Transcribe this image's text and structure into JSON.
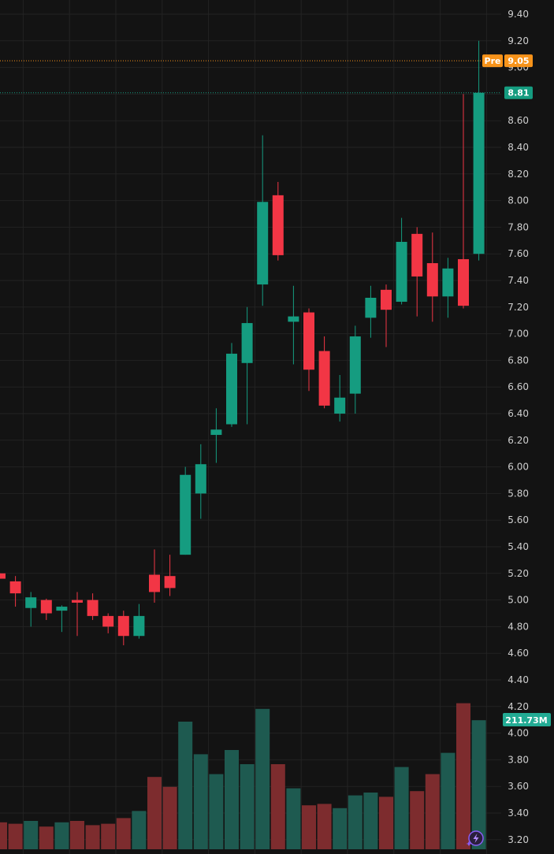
{
  "chart_data": {
    "type": "candlestick",
    "y_ticks": [
      "9.40",
      "9.20",
      "9.00",
      "8.80",
      "8.60",
      "8.40",
      "8.20",
      "8.00",
      "7.80",
      "7.60",
      "7.40",
      "7.20",
      "7.00",
      "6.80",
      "6.60",
      "6.40",
      "6.20",
      "6.00",
      "5.80",
      "5.60",
      "5.40",
      "5.20",
      "5.00",
      "4.80",
      "4.60",
      "4.40",
      "4.20",
      "4.00",
      "3.80",
      "3.60",
      "3.40",
      "3.20"
    ],
    "ylim": [
      3.12,
      9.52
    ],
    "grid": true,
    "candles": [
      {
        "open": 5.2,
        "high": 5.2,
        "low": 5.16,
        "close": 5.16
      },
      {
        "open": 5.14,
        "high": 5.18,
        "low": 4.95,
        "close": 5.05
      },
      {
        "open": 4.94,
        "high": 5.06,
        "low": 4.8,
        "close": 5.02
      },
      {
        "open": 5.0,
        "high": 5.01,
        "low": 4.85,
        "close": 4.9
      },
      {
        "open": 4.92,
        "high": 4.96,
        "low": 4.76,
        "close": 4.95
      },
      {
        "open": 5.0,
        "high": 5.06,
        "low": 4.73,
        "close": 4.98
      },
      {
        "open": 5.0,
        "high": 5.05,
        "low": 4.85,
        "close": 4.88
      },
      {
        "open": 4.88,
        "high": 4.9,
        "low": 4.75,
        "close": 4.8
      },
      {
        "open": 4.88,
        "high": 4.92,
        "low": 4.66,
        "close": 4.73
      },
      {
        "open": 4.73,
        "high": 4.97,
        "low": 4.71,
        "close": 4.88
      },
      {
        "open": 5.19,
        "high": 5.38,
        "low": 4.98,
        "close": 5.06
      },
      {
        "open": 5.18,
        "high": 5.34,
        "low": 5.03,
        "close": 5.09
      },
      {
        "open": 5.34,
        "high": 6.0,
        "low": 5.34,
        "close": 5.94
      },
      {
        "open": 5.8,
        "high": 6.17,
        "low": 5.61,
        "close": 6.02
      },
      {
        "open": 6.24,
        "high": 6.44,
        "low": 6.03,
        "close": 6.28
      },
      {
        "open": 6.32,
        "high": 6.93,
        "low": 6.3,
        "close": 6.85
      },
      {
        "open": 6.78,
        "high": 7.2,
        "low": 6.32,
        "close": 7.08
      },
      {
        "open": 7.37,
        "high": 8.49,
        "low": 7.21,
        "close": 7.99
      },
      {
        "open": 8.04,
        "high": 8.14,
        "low": 7.55,
        "close": 7.59
      },
      {
        "open": 7.09,
        "high": 7.36,
        "low": 6.77,
        "close": 7.13
      },
      {
        "open": 7.16,
        "high": 7.19,
        "low": 6.57,
        "close": 6.73
      },
      {
        "open": 6.87,
        "high": 6.98,
        "low": 6.44,
        "close": 6.46
      },
      {
        "open": 6.4,
        "high": 6.69,
        "low": 6.34,
        "close": 6.52
      },
      {
        "open": 6.55,
        "high": 7.06,
        "low": 6.4,
        "close": 6.98
      },
      {
        "open": 7.12,
        "high": 7.36,
        "low": 6.97,
        "close": 7.27
      },
      {
        "open": 7.33,
        "high": 7.37,
        "low": 6.9,
        "close": 7.18
      },
      {
        "open": 7.24,
        "high": 7.87,
        "low": 7.22,
        "close": 7.69
      },
      {
        "open": 7.75,
        "high": 7.8,
        "low": 7.13,
        "close": 7.43
      },
      {
        "open": 7.53,
        "high": 7.76,
        "low": 7.09,
        "close": 7.28
      },
      {
        "open": 7.28,
        "high": 7.57,
        "low": 7.12,
        "close": 7.49
      },
      {
        "open": 7.56,
        "high": 8.8,
        "low": 7.19,
        "close": 7.21
      },
      {
        "open": 7.6,
        "high": 9.2,
        "low": 7.55,
        "close": 8.81
      }
    ],
    "volume": [
      {
        "value": 0.19,
        "dir": "down"
      },
      {
        "value": 0.18,
        "dir": "down"
      },
      {
        "value": 0.2,
        "dir": "up"
      },
      {
        "value": 0.16,
        "dir": "down"
      },
      {
        "value": 0.19,
        "dir": "up"
      },
      {
        "value": 0.2,
        "dir": "down"
      },
      {
        "value": 0.17,
        "dir": "down"
      },
      {
        "value": 0.18,
        "dir": "down"
      },
      {
        "value": 0.22,
        "dir": "down"
      },
      {
        "value": 0.27,
        "dir": "up"
      },
      {
        "value": 0.51,
        "dir": "down"
      },
      {
        "value": 0.44,
        "dir": "down"
      },
      {
        "value": 0.9,
        "dir": "up"
      },
      {
        "value": 0.67,
        "dir": "up"
      },
      {
        "value": 0.53,
        "dir": "up"
      },
      {
        "value": 0.7,
        "dir": "up"
      },
      {
        "value": 0.6,
        "dir": "up"
      },
      {
        "value": 0.99,
        "dir": "up"
      },
      {
        "value": 0.6,
        "dir": "down"
      },
      {
        "value": 0.43,
        "dir": "up"
      },
      {
        "value": 0.31,
        "dir": "down"
      },
      {
        "value": 0.32,
        "dir": "down"
      },
      {
        "value": 0.29,
        "dir": "up"
      },
      {
        "value": 0.38,
        "dir": "up"
      },
      {
        "value": 0.4,
        "dir": "up"
      },
      {
        "value": 0.37,
        "dir": "down"
      },
      {
        "value": 0.58,
        "dir": "up"
      },
      {
        "value": 0.41,
        "dir": "down"
      },
      {
        "value": 0.53,
        "dir": "down"
      },
      {
        "value": 0.68,
        "dir": "up"
      },
      {
        "value": 1.03,
        "dir": "down"
      },
      {
        "value": 0.91,
        "dir": "up"
      }
    ],
    "price_lines": [
      {
        "label": "Pre",
        "value_label": "9.05",
        "value": 9.05,
        "color": "#f7931a"
      },
      {
        "label": "",
        "value_label": "8.81",
        "value": 8.81,
        "color": "#159c80"
      }
    ],
    "volume_tag": {
      "value_label": "211.73M",
      "color": "#22ab94"
    },
    "colors": {
      "up": "#159c80",
      "down": "#f23645",
      "vol_up": "#1e5a50",
      "vol_down": "#7d2c2e",
      "grid": "#232323",
      "background": "#131313"
    }
  }
}
